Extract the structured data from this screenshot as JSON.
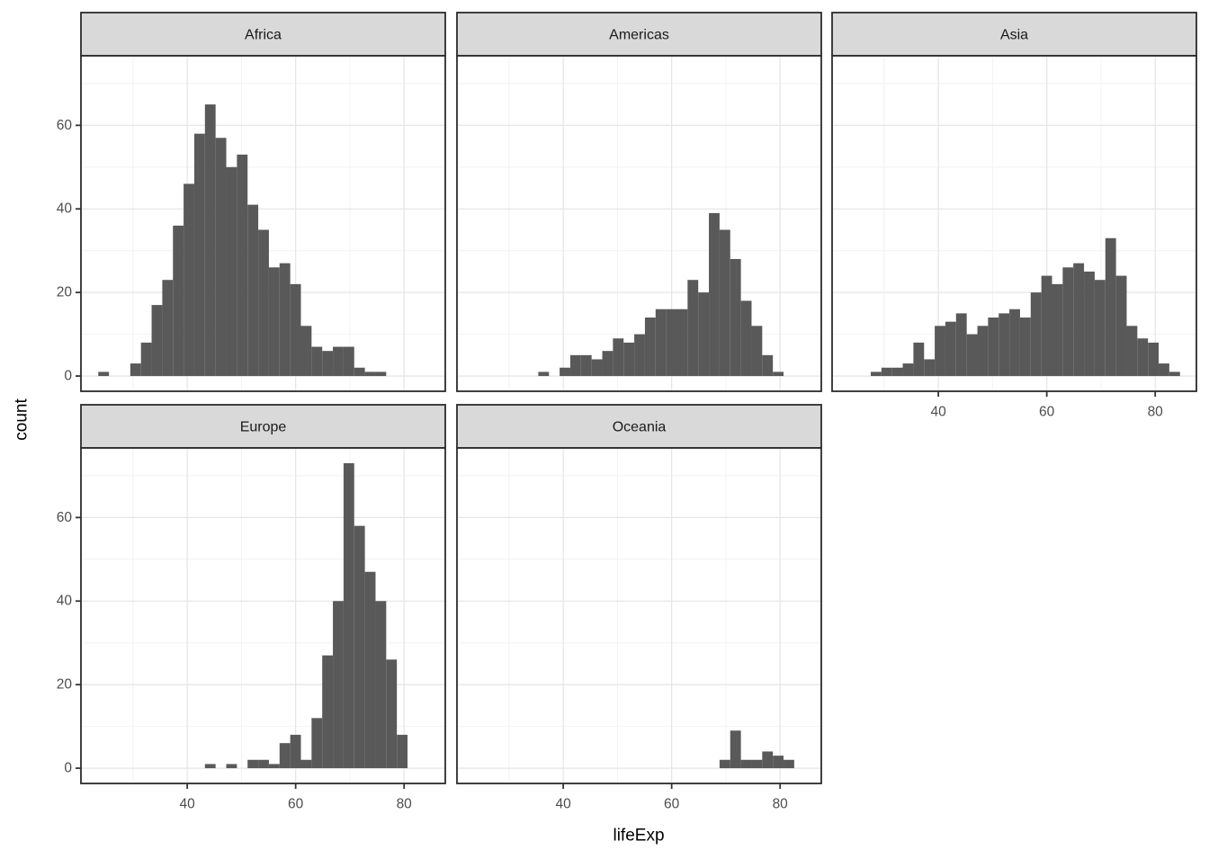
{
  "figure": {
    "background": "#ffffff",
    "colors": {
      "bar_fill": "#595959",
      "strip_bg": "#d9d9d9",
      "strip_text": "#1a1a1a",
      "panel_bg": "#ffffff",
      "panel_border": "#2b2b2b",
      "grid_major": "#e6e6e6",
      "grid_minor": "#f2f2f2",
      "tick_mark": "#333333",
      "tick_label": "#4d4d4d",
      "axis_title": "#000000"
    }
  },
  "chart_data": {
    "type": "bar",
    "subtype": "faceted-histogram",
    "title": "",
    "xlabel": "lifeExp",
    "ylabel": "count",
    "legend": "none",
    "grid": "on",
    "bin_width": 1.9668,
    "x_ticks": [
      40,
      60,
      80
    ],
    "y_ticks": [
      0,
      20,
      40,
      60
    ],
    "x_minor_gridlines": [
      30,
      50,
      70
    ],
    "y_minor_gridlines": [
      10,
      30,
      50,
      70
    ],
    "x_range": [
      20.4,
      87.6
    ],
    "y_range": [
      -3.65,
      76.65
    ],
    "facets": [
      {
        "label": "Africa",
        "row": 0,
        "col": 0,
        "x_axis": false,
        "y_axis": true,
        "bin_start": 23.599,
        "counts": [
          1,
          0,
          0,
          3,
          8,
          17,
          23,
          36,
          46,
          58,
          65,
          57,
          50,
          53,
          41,
          35,
          26,
          27,
          22,
          12,
          7,
          6,
          7,
          7,
          2,
          1,
          1
        ]
      },
      {
        "label": "Americas",
        "row": 0,
        "col": 1,
        "x_axis": false,
        "y_axis": false,
        "bin_start": 35.4,
        "counts": [
          1,
          0,
          2,
          5,
          5,
          4,
          6,
          9,
          8,
          10,
          14,
          16,
          16,
          16,
          23,
          20,
          39,
          35,
          28,
          18,
          12,
          5,
          1
        ]
      },
      {
        "label": "Asia",
        "row": 0,
        "col": 2,
        "x_axis": true,
        "y_axis": false,
        "bin_start": 27.533,
        "counts": [
          1,
          2,
          2,
          3,
          8,
          4,
          12,
          13,
          15,
          10,
          12,
          14,
          15,
          16,
          14,
          20,
          24,
          22,
          26,
          27,
          25,
          23,
          33,
          24,
          12,
          9,
          8,
          3,
          1
        ]
      },
      {
        "label": "Europe",
        "row": 1,
        "col": 0,
        "x_axis": true,
        "y_axis": true,
        "bin_start": 43.267,
        "counts": [
          1,
          0,
          1,
          0,
          2,
          2,
          1,
          6,
          8,
          2,
          12,
          27,
          40,
          73,
          58,
          47,
          40,
          26,
          8
        ]
      },
      {
        "label": "Oceania",
        "row": 1,
        "col": 1,
        "x_axis": true,
        "y_axis": false,
        "bin_start": 68.835,
        "counts": [
          2,
          9,
          2,
          2,
          4,
          3,
          2
        ]
      }
    ]
  }
}
